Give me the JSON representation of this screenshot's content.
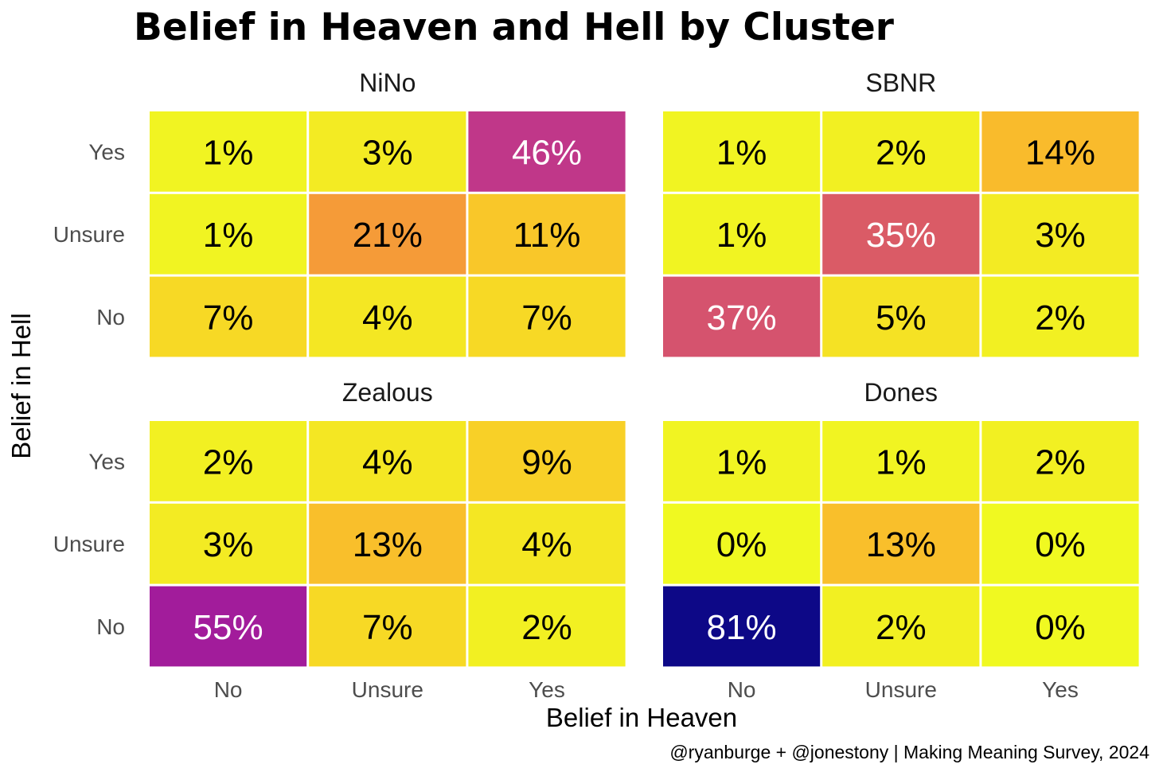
{
  "chart_data": {
    "type": "heatmap",
    "title": "Belief in Heaven and Hell by Cluster",
    "xlabel": "Belief in Heaven",
    "ylabel": "Belief in Hell",
    "caption": "@ryanburge + @jonestony | Making Meaning Survey, 2024",
    "x_categories": [
      "No",
      "Unsure",
      "Yes"
    ],
    "y_categories": [
      "Yes",
      "Unsure",
      "No"
    ],
    "value_range": [
      0,
      81
    ],
    "low_color": "#f0f921",
    "high_color": "#0d0887",
    "facets": [
      {
        "name": "NiNo",
        "rows": [
          {
            "y": "Yes",
            "values": [
              1,
              3,
              46
            ],
            "labels": [
              "1%",
              "3%",
              "46%"
            ]
          },
          {
            "y": "Unsure",
            "values": [
              1,
              21,
              11
            ],
            "labels": [
              "1%",
              "21%",
              "11%"
            ]
          },
          {
            "y": "No",
            "values": [
              7,
              4,
              7
            ],
            "labels": [
              "7%",
              "4%",
              "7%"
            ]
          }
        ]
      },
      {
        "name": "SBNR",
        "rows": [
          {
            "y": "Yes",
            "values": [
              1,
              2,
              14
            ],
            "labels": [
              "1%",
              "2%",
              "14%"
            ]
          },
          {
            "y": "Unsure",
            "values": [
              1,
              35,
              3
            ],
            "labels": [
              "1%",
              "35%",
              "3%"
            ]
          },
          {
            "y": "No",
            "values": [
              37,
              5,
              2
            ],
            "labels": [
              "37%",
              "5%",
              "2%"
            ]
          }
        ]
      },
      {
        "name": "Zealous",
        "rows": [
          {
            "y": "Yes",
            "values": [
              2,
              4,
              9
            ],
            "labels": [
              "2%",
              "4%",
              "9%"
            ]
          },
          {
            "y": "Unsure",
            "values": [
              3,
              13,
              4
            ],
            "labels": [
              "3%",
              "13%",
              "4%"
            ]
          },
          {
            "y": "No",
            "values": [
              55,
              7,
              2
            ],
            "labels": [
              "55%",
              "7%",
              "2%"
            ]
          }
        ]
      },
      {
        "name": "Dones",
        "rows": [
          {
            "y": "Yes",
            "values": [
              1,
              1,
              2
            ],
            "labels": [
              "1%",
              "1%",
              "2%"
            ]
          },
          {
            "y": "Unsure",
            "values": [
              0,
              13,
              0
            ],
            "labels": [
              "0%",
              "13%",
              "0%"
            ]
          },
          {
            "y": "No",
            "values": [
              81,
              2,
              0
            ],
            "labels": [
              "81%",
              "2%",
              "0%"
            ]
          }
        ]
      }
    ]
  }
}
